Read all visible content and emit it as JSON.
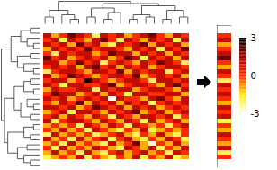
{
  "chart_data": {
    "type": "heatmap",
    "tick_labels": false,
    "color_range": [
      -3,
      3
    ],
    "color_ticks": [
      3,
      0,
      -3
    ],
    "cells": [
      [
        1,
        -1,
        0,
        2,
        1,
        0,
        -2,
        1,
        0,
        1,
        -1,
        0,
        1,
        2,
        0,
        -1,
        1,
        0
      ],
      [
        0,
        1,
        -2,
        1,
        0,
        -1,
        1,
        2,
        0,
        -2,
        1,
        0,
        -1,
        1,
        0,
        1,
        -2,
        1
      ],
      [
        1,
        0,
        1,
        -1,
        2,
        0,
        1,
        -1,
        -2,
        1,
        0,
        1,
        2,
        -1,
        1,
        0,
        1,
        -1
      ],
      [
        -1,
        1,
        0,
        1,
        0,
        2,
        0,
        1,
        1,
        0,
        -1,
        1,
        0,
        1,
        -2,
        1,
        0,
        2
      ],
      [
        0,
        -2,
        1,
        0,
        1,
        1,
        -1,
        0,
        2,
        1,
        1,
        -1,
        1,
        0,
        1,
        -1,
        1,
        0
      ],
      [
        2,
        0,
        1,
        -1,
        0,
        1,
        0,
        1,
        -1,
        0,
        2,
        1,
        -2,
        1,
        0,
        1,
        -1,
        1
      ],
      [
        1,
        1,
        -1,
        0,
        2,
        0,
        1,
        -2,
        0,
        1,
        0,
        -1,
        1,
        0,
        2,
        1,
        0,
        -2
      ],
      [
        0,
        1,
        0,
        1,
        -1,
        1,
        2,
        0,
        1,
        -1,
        1,
        0,
        1,
        -1,
        0,
        1,
        1,
        0
      ],
      [
        -2,
        0,
        1,
        1,
        0,
        -1,
        1,
        1,
        0,
        2,
        -1,
        1,
        0,
        1,
        1,
        -2,
        0,
        1
      ],
      [
        1,
        -1,
        0,
        2,
        1,
        0,
        -1,
        0,
        1,
        1,
        0,
        2,
        -1,
        0,
        1,
        0,
        1,
        -1
      ],
      [
        0,
        1,
        1,
        -1,
        0,
        3,
        1,
        0,
        -1,
        0,
        1,
        1,
        0,
        -2,
        1,
        1,
        0,
        1
      ],
      [
        1,
        0,
        -2,
        1,
        1,
        0,
        0,
        1,
        2,
        -1,
        0,
        1,
        1,
        0,
        -1,
        1,
        2,
        0
      ],
      [
        -1,
        1,
        0,
        0,
        1,
        1,
        -2,
        1,
        0,
        1,
        1,
        -1,
        0,
        1,
        1,
        0,
        -1,
        1
      ],
      [
        0,
        2,
        1,
        1,
        -1,
        0,
        1,
        -1,
        1,
        0,
        -2,
        1,
        1,
        0,
        0,
        1,
        1,
        -1
      ],
      [
        1,
        0,
        1,
        -1,
        0,
        1,
        0,
        1,
        -3,
        1,
        0,
        0,
        -1,
        1,
        2,
        0,
        -1,
        1
      ],
      [
        0,
        -1,
        1,
        0,
        2,
        -1,
        1,
        0,
        1,
        -1,
        1,
        0,
        1,
        -2,
        0,
        1,
        0,
        1
      ],
      [
        1,
        1,
        0,
        1,
        -1,
        0,
        2,
        1,
        0,
        1,
        -1,
        1,
        0,
        1,
        -1,
        0,
        1,
        0
      ],
      [
        -1,
        0,
        1,
        -2,
        1,
        1,
        0,
        -1,
        1,
        0,
        1,
        2,
        -1,
        0,
        1,
        -1,
        0,
        1
      ],
      [
        0,
        1,
        -1,
        1,
        0,
        -1,
        1,
        0,
        -2,
        1,
        0,
        -1,
        1,
        1,
        0,
        1,
        -2,
        0
      ],
      [
        1,
        -2,
        0,
        1,
        1,
        0,
        -1,
        1,
        0,
        -1,
        1,
        0,
        -2,
        1,
        -1,
        0,
        1,
        -1
      ],
      [
        -1,
        0,
        -1,
        0,
        -2,
        1,
        0,
        -1,
        1,
        0,
        -2,
        1,
        0,
        -1,
        0,
        -2,
        0,
        1
      ],
      [
        0,
        -1,
        1,
        -1,
        0,
        -2,
        1,
        0,
        -1,
        -2,
        0,
        -1,
        1,
        -2,
        -1,
        0,
        -1,
        0
      ],
      [
        -2,
        1,
        -1,
        0,
        -1,
        0,
        -2,
        -1,
        0,
        1,
        -1,
        -2,
        0,
        -1,
        1,
        -1,
        -2,
        0
      ],
      [
        1,
        -1,
        0,
        -2,
        1,
        -1,
        0,
        1,
        -2,
        0,
        1,
        -1,
        -2,
        0,
        -1,
        1,
        0,
        -2
      ],
      [
        -1,
        0,
        -2,
        1,
        -1,
        0,
        -1,
        -2,
        1,
        -1,
        0,
        2,
        -1,
        -3,
        0,
        -1,
        1,
        -1
      ],
      [
        0,
        -2,
        1,
        -1,
        0,
        -1,
        1,
        0,
        -1,
        -2,
        1,
        0,
        -1,
        1,
        -2,
        0,
        -1,
        1
      ],
      [
        -1,
        1,
        -1,
        0,
        -2,
        1,
        -1,
        -2,
        0,
        1,
        -1,
        0,
        1,
        -1,
        0,
        -2,
        1,
        0
      ],
      [
        -2,
        -1,
        0,
        -1,
        1,
        -2,
        0,
        -1,
        -2,
        0,
        -1,
        1,
        -2,
        0,
        -1,
        1,
        -2,
        -1
      ]
    ],
    "summary_column": [
      0,
      1,
      -1,
      0,
      1,
      2,
      0,
      -1,
      1,
      0,
      -2,
      1,
      0,
      1,
      0,
      -1,
      1,
      0,
      1,
      -2,
      0,
      -1,
      1,
      0,
      -1,
      1,
      -2,
      0
    ],
    "column_dendrogram": [
      10,
      [
        6,
        [
          3,
          0,
          1
        ],
        [
          4,
          2,
          [
            2,
            3,
            4
          ]
        ]
      ],
      [
        9,
        [
          7,
          [
            3,
            5,
            6
          ],
          [
            5,
            [
              2,
              7,
              8
            ],
            9
          ]
        ],
        [
          8,
          [
            4,
            [
              2,
              10,
              11
            ],
            [
              3,
              12,
              13
            ]
          ],
          [
            6,
            [
              2,
              14,
              15
            ],
            [
              3,
              16,
              17
            ]
          ]
        ]
      ]
    ],
    "row_dendrogram": [
      12,
      [
        9,
        [
          6,
          [
            3,
            0,
            1
          ],
          [
            4,
            2,
            [
              2,
              3,
              4
            ]
          ]
        ],
        [
          7,
          [
            3,
            5,
            6
          ],
          [
            5,
            7,
            [
              2,
              8,
              9
            ]
          ]
        ]
      ],
      [
        11,
        [
          8,
          [
            5,
            [
              3,
              10,
              11
            ],
            [
              2,
              12,
              13
            ]
          ],
          [
            6,
            [
              4,
              14,
              [
                2,
                15,
                16
              ]
            ],
            [
              3,
              17,
              18
            ]
          ]
        ],
        [
          10,
          [
            5,
            [
              2,
              19,
              20
            ],
            [
              3,
              21,
              22
            ]
          ],
          [
            7,
            [
              4,
              23,
              24
            ],
            [
              5,
              25,
              [
                3,
                26,
                27
              ]
            ]
          ]
        ]
      ]
    ]
  }
}
